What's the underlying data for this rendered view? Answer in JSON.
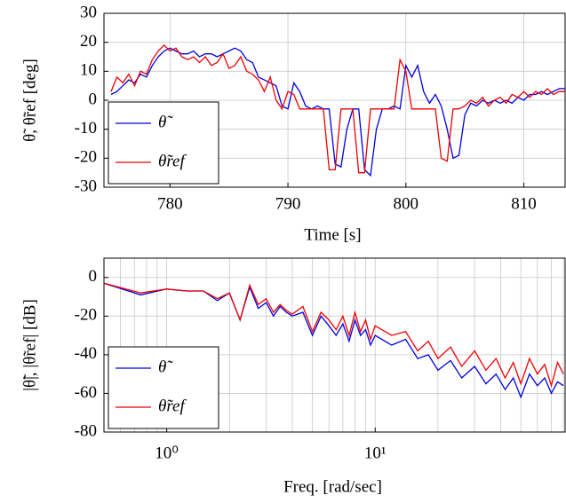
{
  "chart_data": [
    {
      "type": "line",
      "xlabel": "Time [s]",
      "ylabel": "θ̃, θ̃ref [deg]",
      "x": [
        775,
        775.5,
        776,
        776.5,
        777,
        777.5,
        778,
        778.5,
        779,
        779.5,
        780,
        780.5,
        781,
        781.5,
        782,
        782.5,
        783,
        783.5,
        784,
        784.5,
        785,
        785.5,
        786,
        786.5,
        787,
        787.5,
        788,
        788.5,
        789,
        789.5,
        790,
        790.5,
        791,
        791.5,
        792,
        792.5,
        793,
        793.5,
        794,
        794.5,
        795,
        795.5,
        796,
        796.5,
        797,
        797.5,
        798,
        798.5,
        799,
        799.5,
        800,
        800.5,
        801,
        801.5,
        802,
        802.5,
        803,
        803.5,
        804,
        804.5,
        805,
        805.5,
        806,
        806.5,
        807,
        807.5,
        808,
        808.5,
        809,
        809.5,
        810,
        810.5,
        811,
        811.5,
        812,
        812.5,
        813,
        813.5
      ],
      "series": [
        {
          "name": "θ̃",
          "color": "#0000dd",
          "values": [
            2,
            3,
            5,
            7,
            6,
            9,
            8,
            12,
            15,
            17,
            18,
            17,
            16,
            16,
            17,
            15,
            16,
            16,
            15,
            16,
            17,
            18,
            17,
            14,
            13,
            8,
            7,
            6,
            5,
            -2,
            -3,
            6,
            3,
            -2,
            -3,
            -2,
            -3,
            -3,
            -22,
            -23,
            -10,
            -3,
            -3,
            -24,
            -26,
            -10,
            -3,
            -3,
            -2,
            -3,
            12,
            8,
            12,
            3,
            -1,
            2,
            -2,
            -10,
            -20,
            -19,
            -5,
            -1,
            -2,
            0,
            -1,
            0,
            -1,
            0,
            -1,
            1,
            0,
            2,
            2,
            3,
            2,
            3,
            4,
            4
          ]
        },
        {
          "name": "θ̃ref",
          "color": "#ee0000",
          "values": [
            3,
            8,
            6,
            9,
            5,
            10,
            9,
            14,
            17,
            19,
            17,
            18,
            15,
            14,
            15,
            13,
            15,
            12,
            13,
            16,
            11,
            12,
            15,
            10,
            9,
            7,
            3,
            8,
            0,
            -3,
            3,
            2,
            -3,
            -3,
            -3,
            -3,
            -3,
            -24,
            -24,
            -3,
            -3,
            -3,
            -25,
            -25,
            -3,
            -3,
            -3,
            -3,
            -3,
            14,
            10,
            -3,
            -3,
            -3,
            -3,
            -3,
            -20,
            -21,
            -3,
            -3,
            -2,
            0,
            -1,
            1,
            -2,
            0,
            1,
            -1,
            2,
            1,
            3,
            1,
            3,
            2,
            4,
            2,
            3,
            3
          ]
        }
      ],
      "xlim": [
        774.4,
        813.5
      ],
      "xticks": [
        780,
        790,
        800,
        810
      ],
      "ylim": [
        -30,
        30
      ],
      "yticks": [
        -30,
        -20,
        -10,
        0,
        10,
        20,
        30
      ],
      "grid": true,
      "legend": "lower left"
    },
    {
      "type": "line",
      "xlabel": "Freq. [rad/sec]",
      "ylabel": "|θ̃|, |θ̃ref| [dB]",
      "xscale": "log",
      "x": [
        0.5,
        0.75,
        1,
        1.25,
        1.5,
        1.75,
        2,
        2.25,
        2.5,
        2.75,
        3,
        3.25,
        3.5,
        3.75,
        4,
        4.5,
        5,
        5.5,
        6,
        6.5,
        7,
        7.5,
        8,
        8.5,
        9,
        9.5,
        10,
        12,
        14,
        16,
        18,
        20,
        23,
        26,
        30,
        34,
        38,
        42,
        46,
        50,
        55,
        60,
        65,
        70,
        75,
        80
      ],
      "series": [
        {
          "name": "θ̃",
          "color": "#0000dd",
          "values": [
            -3,
            -9,
            -6,
            -7,
            -7,
            -12,
            -8,
            -22,
            -5,
            -16,
            -13,
            -20,
            -15,
            -18,
            -20,
            -18,
            -30,
            -20,
            -25,
            -30,
            -24,
            -33,
            -22,
            -30,
            -27,
            -35,
            -30,
            -35,
            -32,
            -42,
            -40,
            -48,
            -43,
            -52,
            -46,
            -55,
            -50,
            -58,
            -52,
            -62,
            -50,
            -56,
            -52,
            -60,
            -54,
            -56
          ]
        },
        {
          "name": "θ̃ref",
          "color": "#ee0000",
          "values": [
            -3,
            -8,
            -6,
            -7,
            -7,
            -11,
            -8,
            -22,
            -4,
            -14,
            -11,
            -18,
            -14,
            -17,
            -19,
            -15,
            -28,
            -18,
            -22,
            -27,
            -20,
            -30,
            -18,
            -28,
            -22,
            -32,
            -25,
            -30,
            -28,
            -38,
            -33,
            -42,
            -36,
            -46,
            -38,
            -48,
            -42,
            -52,
            -44,
            -55,
            -42,
            -50,
            -45,
            -56,
            -44,
            -50
          ]
        }
      ],
      "xlim": [
        0.5,
        81.5
      ],
      "xticks": [
        {
          "value": 1,
          "label": "10⁰"
        },
        {
          "value": 10,
          "label": "10¹"
        }
      ],
      "xminorticks": [
        0.6,
        0.7,
        0.8,
        0.9,
        2,
        3,
        4,
        5,
        6,
        7,
        8,
        9,
        20,
        30,
        40,
        50,
        60,
        70,
        80
      ],
      "ylim": [
        -80,
        10
      ],
      "yticks": [
        -80,
        -60,
        -40,
        -20,
        0
      ],
      "grid": true,
      "legend": "lower left"
    }
  ]
}
